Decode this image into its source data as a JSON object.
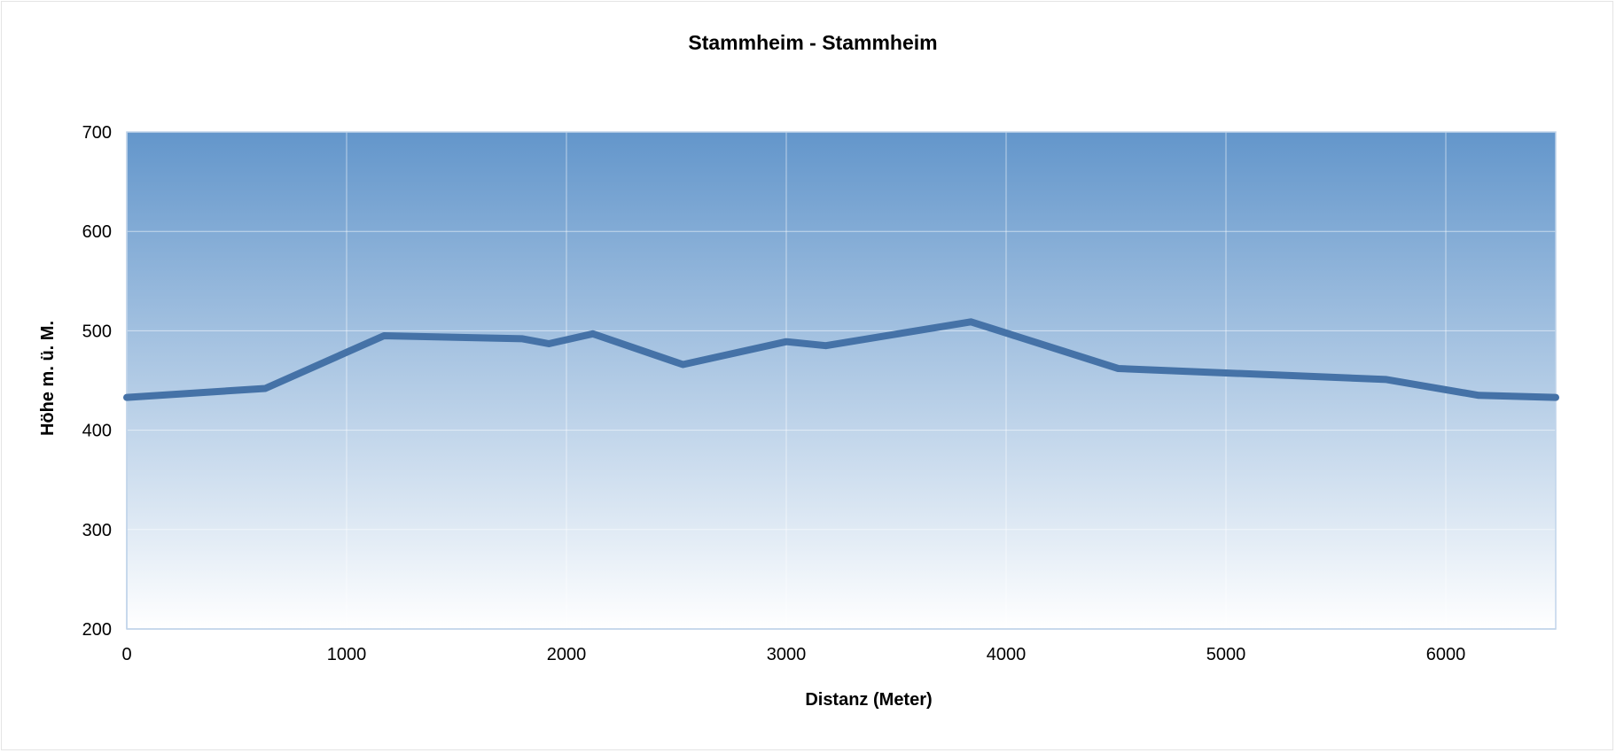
{
  "chart_data": {
    "type": "line",
    "title": "Stammheim - Stammheim",
    "xlabel": "Distanz (Meter)",
    "ylabel": "Höhe m. ü. M.",
    "xlim": [
      0,
      6500
    ],
    "ylim": [
      200,
      700
    ],
    "xticks": [
      "0",
      "1000",
      "2000",
      "3000",
      "4000",
      "5000",
      "6000"
    ],
    "yticks": [
      "200",
      "300",
      "400",
      "500",
      "600",
      "700"
    ],
    "grid": true,
    "legend": "none",
    "colors": {
      "line": "#4572a7",
      "bg_top": "#6396cb",
      "bg_bottom": "#ffffff",
      "grid": "#ffffff",
      "axis": "#c0d4ea"
    },
    "series": [
      {
        "x": [
          0,
          630,
          1170,
          1800,
          1920,
          2120,
          2530,
          3000,
          3180,
          3840,
          4510,
          5730,
          6150,
          6500
        ],
        "y": [
          433,
          442,
          495,
          492,
          487,
          497,
          466,
          489,
          485,
          509,
          462,
          451,
          435,
          433
        ]
      }
    ]
  }
}
